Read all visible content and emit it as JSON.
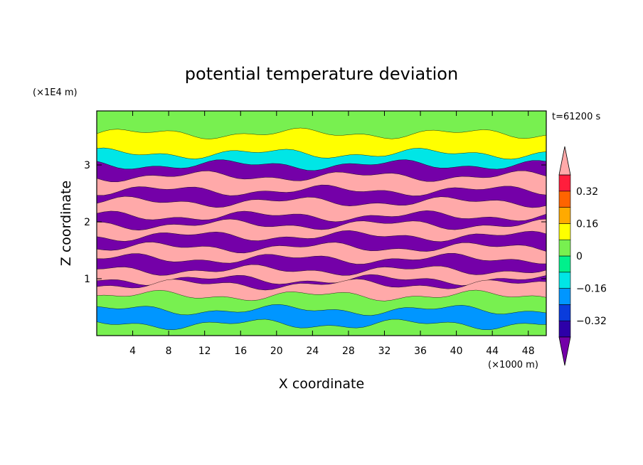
{
  "chart_data": {
    "type": "heatmap",
    "title": "potential temperature deviation",
    "time_label": "t=61200 s",
    "xlabel": "X coordinate",
    "ylabel": "Z coordinate",
    "x_unit": "(×1000 m)",
    "y_unit": "(×1E4 m)",
    "xlim": [
      0,
      50
    ],
    "ylim": [
      0,
      3.95
    ],
    "x_ticks": [
      4,
      8,
      12,
      16,
      20,
      24,
      28,
      32,
      36,
      40,
      44,
      48
    ],
    "y_ticks": [
      1,
      2,
      3
    ],
    "grid": false,
    "colorbar": {
      "placement": "right",
      "levels": [
        -0.4,
        -0.32,
        -0.24,
        -0.16,
        -0.08,
        0,
        0.08,
        0.16,
        0.24,
        0.32,
        0.4
      ],
      "colors": [
        "#7400a8",
        "#2d00a8",
        "#0a3cdc",
        "#0096ff",
        "#00e6e6",
        "#00f08c",
        "#78f050",
        "#ffff00",
        "#ffaa00",
        "#ff6400",
        "#ff1e3c",
        "#ffa9a9"
      ],
      "under_color": "#7400a8",
      "over_color": "#ffa9a9",
      "tick_labels": [
        {
          "value": 0.32,
          "label": "0.32"
        },
        {
          "value": 0.16,
          "label": "0.16"
        },
        {
          "value": 0,
          "label": "0"
        },
        {
          "value": -0.16,
          "label": "−0.16"
        },
        {
          "value": -0.32,
          "label": "−0.32"
        }
      ]
    },
    "layers": [
      {
        "z": 3.55,
        "level": 0.08
      },
      {
        "z": 3.2,
        "level": -0.12
      },
      {
        "z": 3.0,
        "level": -0.45
      },
      {
        "z": 2.8,
        "level": 0.45
      },
      {
        "z": 2.55,
        "level": -0.45
      },
      {
        "z": 2.35,
        "level": 0.45
      },
      {
        "z": 2.1,
        "level": -0.45
      },
      {
        "z": 1.95,
        "level": 0.45
      },
      {
        "z": 1.75,
        "level": -0.45
      },
      {
        "z": 1.55,
        "level": 0.45
      },
      {
        "z": 1.35,
        "level": -0.45
      },
      {
        "z": 1.15,
        "level": 0.45
      },
      {
        "z": 0.98,
        "level": -0.45
      },
      {
        "z": 0.9,
        "level": 0.45
      },
      {
        "z": 0.7,
        "level": 0.05
      },
      {
        "z": 0.45,
        "level": -0.2
      },
      {
        "z": 0.2,
        "level": 0.0
      }
    ]
  }
}
